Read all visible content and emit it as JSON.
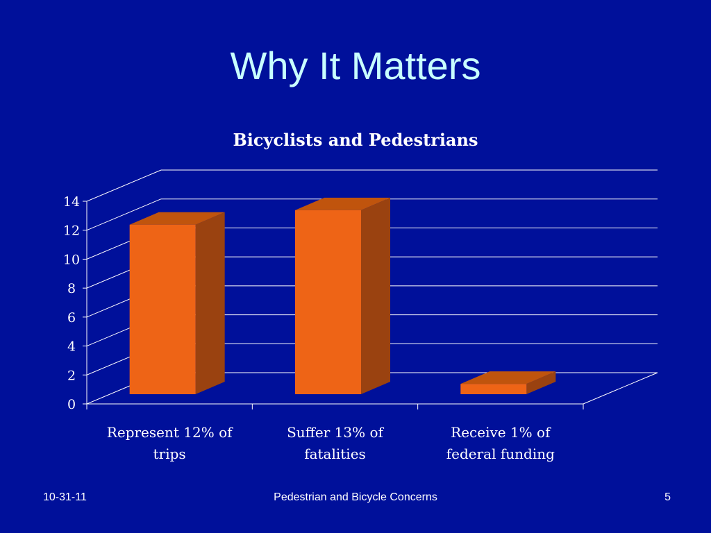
{
  "slide": {
    "title": "Why It Matters",
    "footer_date": "10-31-11",
    "footer_center": "Pedestrian and Bicycle Concerns",
    "page_number": "5"
  },
  "colors": {
    "background": "#00109a",
    "bar_front": "#ee6416",
    "bar_top": "#c0540d",
    "bar_side": "#9a4210"
  },
  "chart_data": {
    "type": "bar",
    "title": "Bicyclists and Pedestrians",
    "categories": [
      [
        "Represent 12% of",
        "trips"
      ],
      [
        "Suffer 13% of",
        "fatalities"
      ],
      [
        "Receive 1% of",
        "federal funding"
      ]
    ],
    "values": [
      12,
      13,
      1
    ],
    "ylim": [
      0,
      14
    ],
    "yticks": [
      "0",
      "2",
      "4",
      "6",
      "8",
      "10",
      "12",
      "14"
    ],
    "grid": true,
    "legend": "none",
    "three_d": true
  }
}
